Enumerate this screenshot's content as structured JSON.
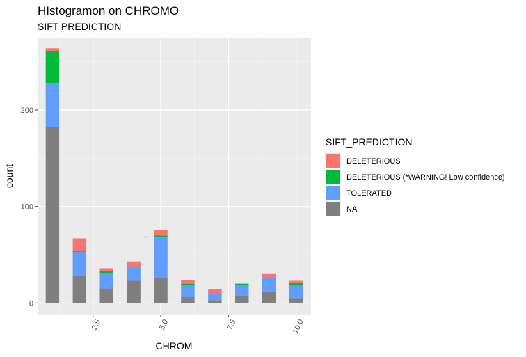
{
  "chart_data": {
    "type": "bar",
    "stacked": true,
    "title": "HIstogramon on CHROMO",
    "subtitle": "SIFT PREDICTION",
    "xlabel": "CHROM",
    "ylabel": "count",
    "xlim": [
      0.45,
      10.55
    ],
    "ylim": [
      -12,
      275
    ],
    "x_ticks": [
      2.5,
      5.0,
      7.5,
      10.0
    ],
    "x_tick_labels": [
      "2.5",
      "5.0",
      "7.5",
      "10.0"
    ],
    "y_ticks": [
      0,
      100,
      200
    ],
    "y_tick_labels": [
      "0",
      "100",
      "200"
    ],
    "grid": true,
    "legend_position": "right",
    "legend_title": "SIFT_PREDICTION",
    "x": [
      1,
      2,
      3,
      4,
      5,
      6,
      7,
      8,
      9,
      10
    ],
    "series": [
      {
        "name": "NA",
        "color": "#7F7F7F",
        "values": [
          182,
          28,
          15,
          23,
          26,
          6,
          3,
          7,
          12,
          5
        ]
      },
      {
        "name": "TOLERATED",
        "color": "#619CFF",
        "values": [
          46,
          25,
          16,
          14,
          42,
          13,
          7,
          12,
          14,
          13
        ]
      },
      {
        "name": "DELETERIOUS (*WARNING! Low confidence)",
        "color": "#00BA38",
        "values": [
          33,
          1,
          2,
          1,
          2,
          1,
          0,
          1,
          0,
          3
        ]
      },
      {
        "name": "DELETERIOUS",
        "color": "#F8766D",
        "values": [
          3,
          13,
          3,
          5,
          6,
          4,
          4,
          0,
          4,
          2
        ]
      }
    ],
    "legend_order": [
      "DELETERIOUS",
      "DELETERIOUS (*WARNING! Low confidence)",
      "TOLERATED",
      "NA"
    ]
  }
}
